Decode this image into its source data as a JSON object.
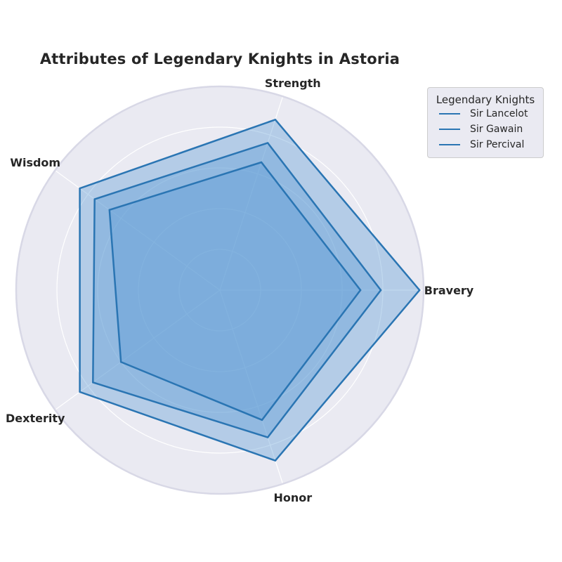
{
  "chart_data": {
    "type": "radar",
    "title": "Attributes of Legendary Knights in Astoria",
    "categories": [
      "Bravery",
      "Strength",
      "Wisdom",
      "Dexterity",
      "Honor"
    ],
    "rlim": [
      0,
      100
    ],
    "rticks": [
      20,
      40,
      60,
      80,
      100
    ],
    "grid": true,
    "legend": {
      "title": "Legendary Knights",
      "placement": "top-right"
    },
    "series": [
      {
        "name": "Sir Lancelot",
        "values": [
          98,
          88,
          85,
          85,
          88
        ]
      },
      {
        "name": "Sir Gawain",
        "values": [
          79,
          76,
          76,
          77,
          76
        ]
      },
      {
        "name": "Sir Percival",
        "values": [
          69,
          66,
          67,
          60,
          67
        ]
      }
    ],
    "colors": {
      "line": "#2a75b3",
      "fill": "#5b9bd5",
      "background": "#eaeaf2",
      "grid": "#ffffff",
      "outline": "#d8d8e6"
    }
  }
}
